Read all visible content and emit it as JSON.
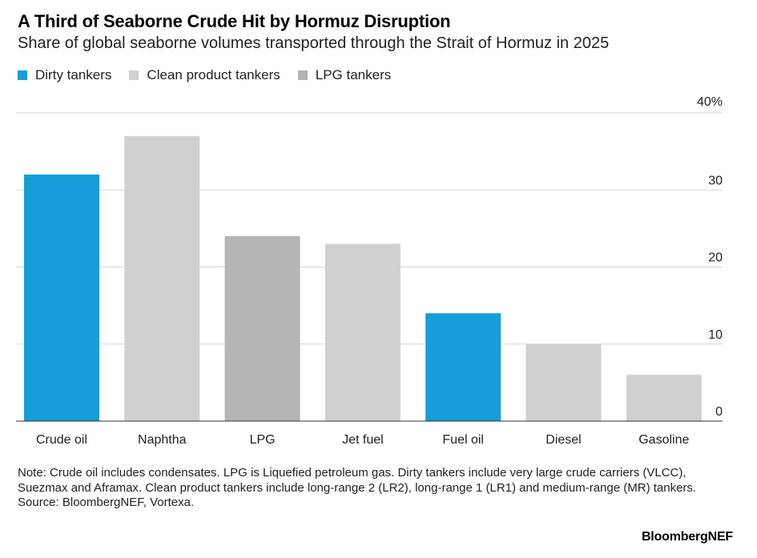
{
  "header": {
    "title": "A Third of Seaborne Crude Hit by Hormuz Disruption",
    "subtitle": "Share of global seaborne volumes transported through the Strait of Hormuz in 2025"
  },
  "legend": [
    {
      "label": "Dirty tankers",
      "color": "#159ed9"
    },
    {
      "label": "Clean product tankers",
      "color": "#d0d0d0"
    },
    {
      "label": "LPG tankers",
      "color": "#b4b4b4"
    }
  ],
  "chart_data": {
    "type": "bar",
    "categories": [
      "Crude oil",
      "Naphtha",
      "LPG",
      "Jet fuel",
      "Fuel oil",
      "Diesel",
      "Gasoline"
    ],
    "values": [
      32,
      37,
      24,
      23,
      14,
      10,
      6
    ],
    "bar_groups": [
      "Dirty tankers",
      "Clean product tankers",
      "LPG tankers",
      "Clean product tankers",
      "Dirty tankers",
      "Clean product tankers",
      "Clean product tankers"
    ],
    "ylim": [
      0,
      40
    ],
    "yticks": [
      0,
      10,
      20,
      30,
      40
    ],
    "ytick_labels": [
      "0",
      "10",
      "20",
      "30",
      "40%"
    ],
    "y_axis_side": "right",
    "grid": true,
    "legend_position": "top-left"
  },
  "footer": {
    "note": "Note: Crude oil includes condensates. LPG is Liquefied petroleum gas. Dirty tankers include very large crude carriers (VLCC), Suezmax and Aframax. Clean product tankers include long-range 2 (LR2), long-range 1 (LR1) and medium-range (MR) tankers.",
    "source": "Source: BloombergNEF, Vortexa.",
    "brand": "BloombergNEF"
  }
}
